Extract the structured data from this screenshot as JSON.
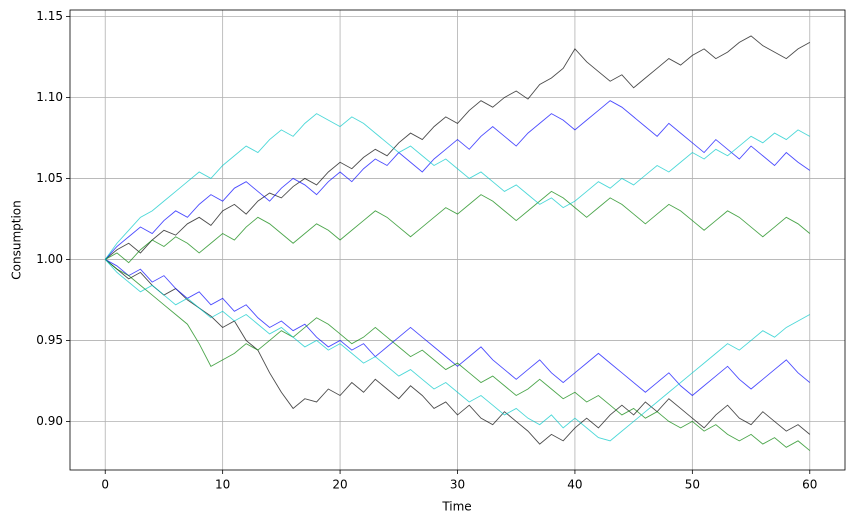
{
  "chart_data": {
    "type": "line",
    "xlabel": "Time",
    "ylabel": "Consumption",
    "x": [
      0,
      1,
      2,
      3,
      4,
      5,
      6,
      7,
      8,
      9,
      10,
      11,
      12,
      13,
      14,
      15,
      16,
      17,
      18,
      19,
      20,
      21,
      22,
      23,
      24,
      25,
      26,
      27,
      28,
      29,
      30,
      31,
      32,
      33,
      34,
      35,
      36,
      37,
      38,
      39,
      40,
      41,
      42,
      43,
      44,
      45,
      46,
      47,
      48,
      49,
      50,
      51,
      52,
      53,
      54,
      55,
      56,
      57,
      58,
      59,
      60
    ],
    "series": [
      {
        "color": "#000000",
        "values": [
          1.0,
          1.006,
          1.01,
          1.004,
          1.012,
          1.018,
          1.015,
          1.022,
          1.026,
          1.021,
          1.03,
          1.034,
          1.028,
          1.036,
          1.041,
          1.038,
          1.045,
          1.05,
          1.046,
          1.054,
          1.06,
          1.056,
          1.063,
          1.068,
          1.064,
          1.072,
          1.078,
          1.074,
          1.082,
          1.088,
          1.084,
          1.092,
          1.098,
          1.094,
          1.1,
          1.104,
          1.099,
          1.108,
          1.112,
          1.118,
          1.13,
          1.122,
          1.116,
          1.11,
          1.114,
          1.106,
          1.112,
          1.118,
          1.124,
          1.12,
          1.126,
          1.13,
          1.124,
          1.128,
          1.134,
          1.138,
          1.132,
          1.128,
          1.124,
          1.13,
          1.134
        ]
      },
      {
        "color": "#000000",
        "values": [
          1.0,
          0.994,
          0.988,
          0.992,
          0.984,
          0.978,
          0.982,
          0.975,
          0.97,
          0.965,
          0.958,
          0.962,
          0.95,
          0.944,
          0.93,
          0.918,
          0.908,
          0.914,
          0.912,
          0.92,
          0.916,
          0.924,
          0.918,
          0.926,
          0.92,
          0.914,
          0.922,
          0.916,
          0.908,
          0.912,
          0.904,
          0.91,
          0.902,
          0.898,
          0.906,
          0.9,
          0.894,
          0.886,
          0.892,
          0.888,
          0.896,
          0.902,
          0.896,
          0.904,
          0.91,
          0.904,
          0.912,
          0.906,
          0.914,
          0.908,
          0.902,
          0.896,
          0.904,
          0.91,
          0.902,
          0.898,
          0.906,
          0.9,
          0.894,
          0.898,
          0.892
        ]
      },
      {
        "color": "#0000ff",
        "values": [
          1.0,
          1.008,
          1.014,
          1.02,
          1.016,
          1.024,
          1.03,
          1.026,
          1.034,
          1.04,
          1.036,
          1.044,
          1.048,
          1.042,
          1.036,
          1.044,
          1.05,
          1.046,
          1.04,
          1.048,
          1.054,
          1.048,
          1.056,
          1.062,
          1.058,
          1.066,
          1.06,
          1.054,
          1.062,
          1.068,
          1.074,
          1.068,
          1.076,
          1.082,
          1.076,
          1.07,
          1.078,
          1.084,
          1.09,
          1.086,
          1.08,
          1.086,
          1.092,
          1.098,
          1.094,
          1.088,
          1.082,
          1.076,
          1.084,
          1.078,
          1.072,
          1.066,
          1.074,
          1.068,
          1.062,
          1.07,
          1.064,
          1.058,
          1.066,
          1.06,
          1.055
        ]
      },
      {
        "color": "#0000ff",
        "values": [
          1.0,
          0.996,
          0.99,
          0.994,
          0.986,
          0.99,
          0.982,
          0.976,
          0.98,
          0.972,
          0.976,
          0.968,
          0.972,
          0.964,
          0.958,
          0.962,
          0.956,
          0.96,
          0.952,
          0.946,
          0.95,
          0.944,
          0.948,
          0.94,
          0.946,
          0.952,
          0.958,
          0.952,
          0.946,
          0.94,
          0.934,
          0.94,
          0.946,
          0.938,
          0.932,
          0.926,
          0.932,
          0.938,
          0.93,
          0.924,
          0.93,
          0.936,
          0.942,
          0.936,
          0.93,
          0.924,
          0.918,
          0.924,
          0.93,
          0.922,
          0.916,
          0.922,
          0.928,
          0.934,
          0.926,
          0.92,
          0.926,
          0.932,
          0.938,
          0.93,
          0.924
        ]
      },
      {
        "color": "#008000",
        "values": [
          1.0,
          1.004,
          0.998,
          1.006,
          1.012,
          1.008,
          1.014,
          1.01,
          1.004,
          1.01,
          1.016,
          1.012,
          1.02,
          1.026,
          1.022,
          1.016,
          1.01,
          1.016,
          1.022,
          1.018,
          1.012,
          1.018,
          1.024,
          1.03,
          1.026,
          1.02,
          1.014,
          1.02,
          1.026,
          1.032,
          1.028,
          1.034,
          1.04,
          1.036,
          1.03,
          1.024,
          1.03,
          1.036,
          1.042,
          1.038,
          1.032,
          1.026,
          1.032,
          1.038,
          1.034,
          1.028,
          1.022,
          1.028,
          1.034,
          1.03,
          1.024,
          1.018,
          1.024,
          1.03,
          1.026,
          1.02,
          1.014,
          1.02,
          1.026,
          1.022,
          1.016
        ]
      },
      {
        "color": "#008000",
        "values": [
          1.0,
          0.994,
          0.99,
          0.984,
          0.978,
          0.972,
          0.966,
          0.96,
          0.948,
          0.934,
          0.938,
          0.942,
          0.948,
          0.944,
          0.95,
          0.956,
          0.952,
          0.958,
          0.964,
          0.96,
          0.954,
          0.948,
          0.952,
          0.958,
          0.952,
          0.946,
          0.94,
          0.944,
          0.938,
          0.932,
          0.936,
          0.93,
          0.924,
          0.928,
          0.922,
          0.916,
          0.92,
          0.926,
          0.92,
          0.914,
          0.918,
          0.912,
          0.916,
          0.91,
          0.904,
          0.908,
          0.902,
          0.906,
          0.9,
          0.896,
          0.9,
          0.894,
          0.898,
          0.892,
          0.888,
          0.892,
          0.886,
          0.89,
          0.884,
          0.888,
          0.882
        ]
      },
      {
        "color": "#00c8c8",
        "values": [
          1.0,
          1.01,
          1.018,
          1.026,
          1.03,
          1.036,
          1.042,
          1.048,
          1.054,
          1.05,
          1.058,
          1.064,
          1.07,
          1.066,
          1.074,
          1.08,
          1.076,
          1.084,
          1.09,
          1.086,
          1.082,
          1.088,
          1.084,
          1.078,
          1.072,
          1.066,
          1.07,
          1.064,
          1.058,
          1.062,
          1.056,
          1.05,
          1.054,
          1.048,
          1.042,
          1.046,
          1.04,
          1.034,
          1.038,
          1.032,
          1.036,
          1.042,
          1.048,
          1.044,
          1.05,
          1.046,
          1.052,
          1.058,
          1.054,
          1.06,
          1.066,
          1.062,
          1.068,
          1.064,
          1.07,
          1.076,
          1.072,
          1.078,
          1.074,
          1.08,
          1.076
        ]
      },
      {
        "color": "#00c8c8",
        "values": [
          1.0,
          0.992,
          0.986,
          0.98,
          0.984,
          0.978,
          0.972,
          0.976,
          0.97,
          0.964,
          0.968,
          0.962,
          0.966,
          0.96,
          0.954,
          0.958,
          0.952,
          0.946,
          0.95,
          0.944,
          0.948,
          0.942,
          0.936,
          0.94,
          0.934,
          0.928,
          0.932,
          0.926,
          0.92,
          0.924,
          0.918,
          0.912,
          0.916,
          0.91,
          0.904,
          0.908,
          0.902,
          0.898,
          0.904,
          0.896,
          0.902,
          0.896,
          0.89,
          0.888,
          0.894,
          0.9,
          0.906,
          0.912,
          0.918,
          0.924,
          0.93,
          0.936,
          0.942,
          0.948,
          0.944,
          0.95,
          0.956,
          0.952,
          0.958,
          0.962,
          0.966
        ]
      }
    ],
    "xlim": [
      -3,
      63
    ],
    "xticks": [
      0,
      10,
      20,
      30,
      40,
      50,
      60
    ],
    "ylim": [
      0.87,
      1.154
    ],
    "yticks": [
      {
        "value": 0.9,
        "label": "0.90"
      },
      0.95,
      {
        "value": 1.0,
        "label": "1.00"
      },
      1.05,
      {
        "value": 1.1,
        "label": "1.10"
      },
      1.15
    ],
    "grid": true
  }
}
